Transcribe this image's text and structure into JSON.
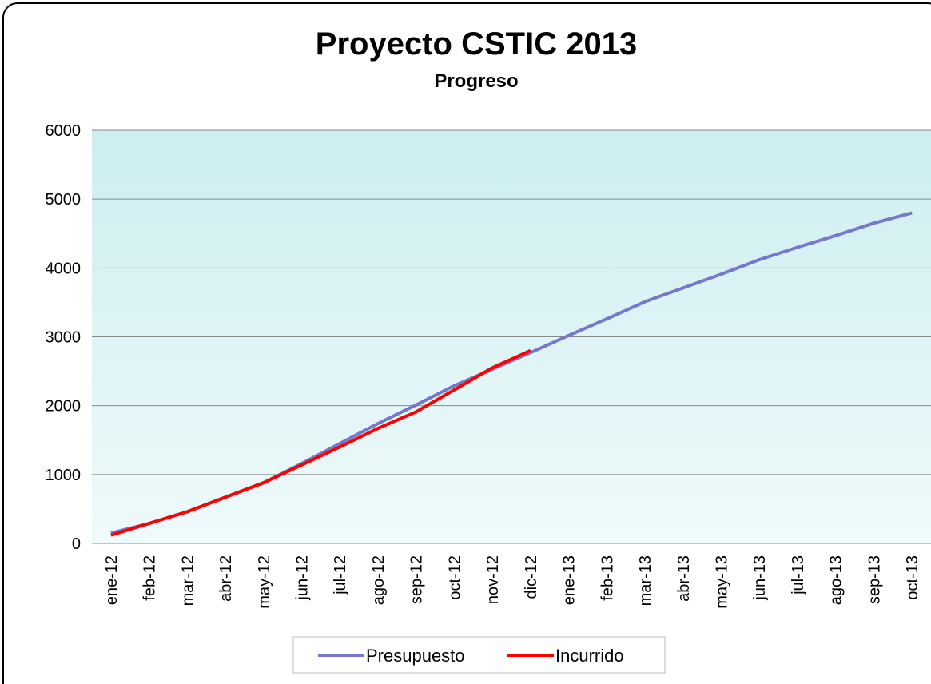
{
  "chart_data": {
    "type": "line",
    "title": "Proyecto CSTIC 2013",
    "subtitle": "Progreso",
    "categories": [
      "ene-12",
      "feb-12",
      "mar-12",
      "abr-12",
      "may-12",
      "jun-12",
      "jul-12",
      "ago-12",
      "sep-12",
      "oct-12",
      "nov-12",
      "dic-12",
      "ene-13",
      "feb-13",
      "mar-13",
      "abr-13",
      "may-13",
      "jun-13",
      "jul-13",
      "ago-13",
      "sep-13",
      "oct-13"
    ],
    "series": [
      {
        "name": "Presupuesto",
        "color": "#7777cc",
        "values": [
          150,
          290,
          460,
          670,
          880,
          1160,
          1450,
          1740,
          2010,
          2290,
          2530,
          2770,
          3020,
          3260,
          3510,
          3710,
          3910,
          4120,
          4300,
          4470,
          4650,
          4800
        ]
      },
      {
        "name": "Incurrido",
        "color": "#ff0000",
        "values": [
          120,
          290,
          460,
          670,
          880,
          1140,
          1400,
          1670,
          1910,
          2230,
          2550,
          2800,
          null,
          null,
          null,
          null,
          null,
          null,
          null,
          null,
          null,
          null
        ]
      }
    ],
    "ylim": [
      0,
      6000
    ],
    "yticks": [
      0,
      1000,
      2000,
      3000,
      4000,
      5000,
      6000
    ],
    "grid": true,
    "legend": "bottom"
  }
}
